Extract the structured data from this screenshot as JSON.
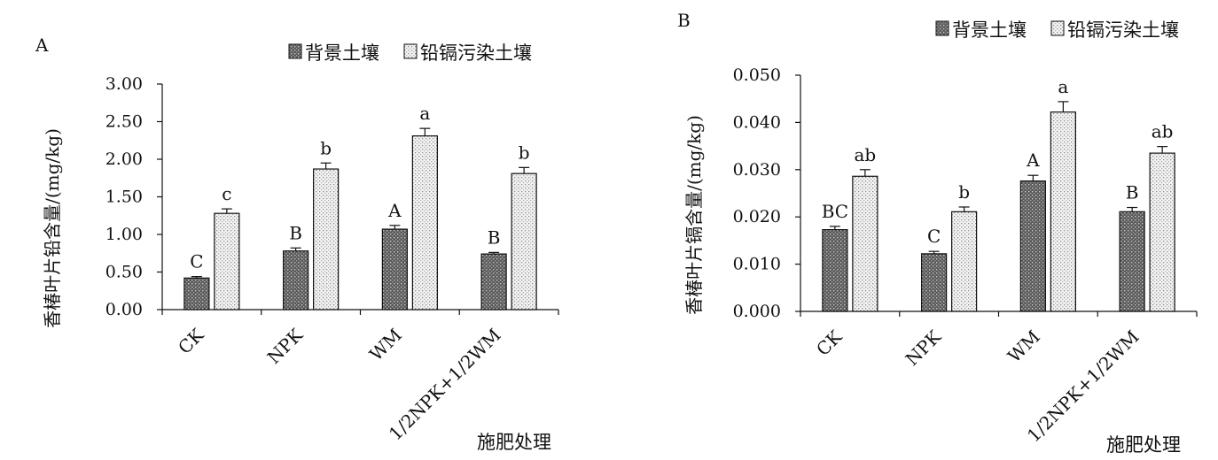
{
  "patterns": {
    "background_fill": "#6e6e6e",
    "polluted_fill": "#ececec",
    "stroke": "#111111"
  },
  "chart_data": [
    {
      "type": "bar",
      "panel_label": "A",
      "title": "",
      "ylabel": "香椿叶片铅含量/(mg/kg)",
      "xlabel": "施肥处理",
      "categories": [
        "CK",
        "NPK",
        "WM",
        "1/2NPK+1/2WM"
      ],
      "ylim": [
        0,
        3.0
      ],
      "yticks": [
        0,
        0.5,
        1.0,
        1.5,
        2.0,
        2.5,
        3.0
      ],
      "ytick_labels": [
        "0.00",
        "0.50",
        "1.00",
        "1.50",
        "2.00",
        "2.50",
        "3.00"
      ],
      "legend": "top-right",
      "series": [
        {
          "name": "背景土壤",
          "values": [
            0.42,
            0.78,
            1.07,
            0.74
          ],
          "errors": [
            0.02,
            0.04,
            0.05,
            0.02
          ],
          "letters": [
            "C",
            "B",
            "A",
            "B"
          ]
        },
        {
          "name": "铅镉污染土壤",
          "values": [
            1.28,
            1.87,
            2.31,
            1.81
          ],
          "errors": [
            0.06,
            0.08,
            0.1,
            0.08
          ],
          "letters": [
            "c",
            "b",
            "a",
            "b"
          ]
        }
      ]
    },
    {
      "type": "bar",
      "panel_label": "B",
      "title": "",
      "ylabel": "香椿叶片镉含量/(mg/kg)",
      "xlabel": "施肥处理",
      "categories": [
        "CK",
        "NPK",
        "WM",
        "1/2NPK+1/2WM"
      ],
      "ylim": [
        0,
        0.05
      ],
      "yticks": [
        0,
        0.01,
        0.02,
        0.03,
        0.04,
        0.05
      ],
      "ytick_labels": [
        "0.000",
        "0.010",
        "0.020",
        "0.030",
        "0.040",
        "0.050"
      ],
      "legend": "top-right",
      "series": [
        {
          "name": "背景土壤",
          "values": [
            0.0173,
            0.0122,
            0.0276,
            0.0211
          ],
          "errors": [
            0.0007,
            0.0005,
            0.0012,
            0.0009
          ],
          "letters": [
            "BC",
            "C",
            "A",
            "B"
          ]
        },
        {
          "name": "铅镉污染土壤",
          "values": [
            0.0286,
            0.0211,
            0.0422,
            0.0335
          ],
          "errors": [
            0.0014,
            0.001,
            0.0022,
            0.0014
          ],
          "letters": [
            "ab",
            "b",
            "a",
            "ab"
          ]
        }
      ]
    }
  ]
}
